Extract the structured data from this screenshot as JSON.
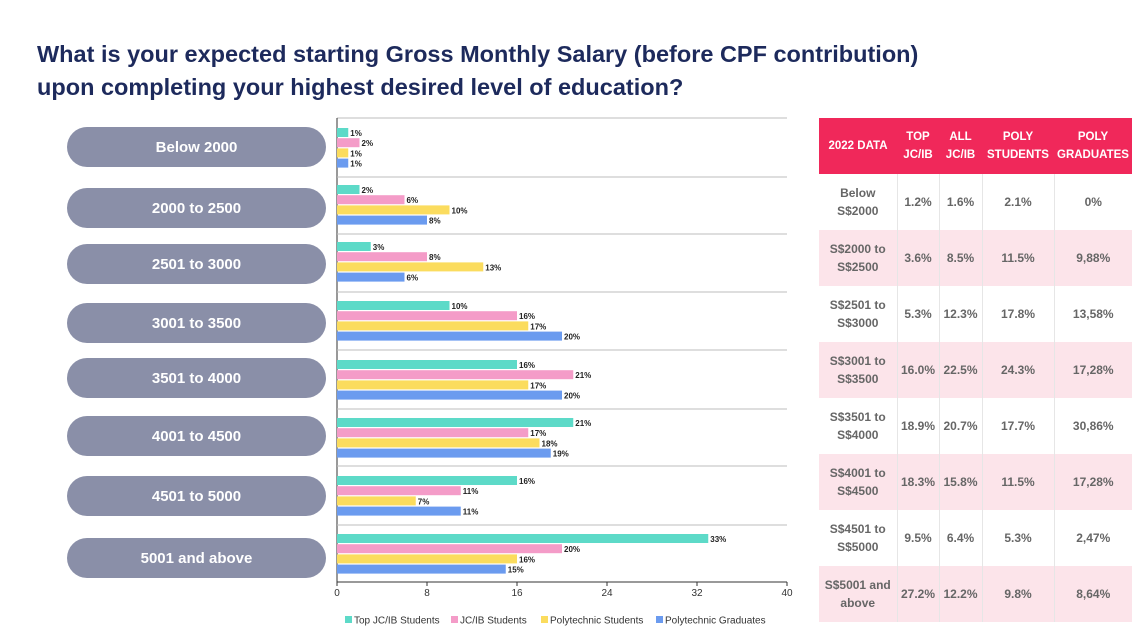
{
  "title_line1": "What is your expected starting Gross Monthly Salary (before CPF contribution)",
  "title_line2": "upon completing your highest desired level of education?",
  "chart_data": {
    "type": "bar",
    "orientation": "horizontal",
    "categories": [
      "Below 2000",
      "2000 to 2500",
      "2501 to 3000",
      "3001 to 3500",
      "3501 to 4000",
      "4001 to 4500",
      "4501 to 5000",
      "5001 and above"
    ],
    "series": [
      {
        "name": "Top JC/IB Students",
        "color": "#5ddac8",
        "values": [
          1,
          2,
          3,
          10,
          16,
          21,
          16,
          33
        ]
      },
      {
        "name": "JC/IB Students",
        "color": "#f49cc8",
        "values": [
          2,
          6,
          8,
          16,
          21,
          17,
          11,
          20
        ]
      },
      {
        "name": "Polytechnic Students",
        "color": "#fbdc5e",
        "values": [
          1,
          10,
          13,
          17,
          17,
          18,
          7,
          16
        ]
      },
      {
        "name": "Polytechnic Graduates",
        "color": "#6b9bef",
        "values": [
          1,
          8,
          6,
          20,
          20,
          19,
          11,
          15
        ]
      }
    ],
    "xlim": [
      0,
      40
    ],
    "xticks": [
      0,
      8,
      16,
      24,
      32,
      40
    ],
    "value_suffix": "%",
    "legend_position": "bottom"
  },
  "table": {
    "headers": [
      "2022 DATA",
      "TOP JC/IB",
      "ALL JC/IB",
      "POLY STUDENTS",
      "POLY GRADUATES"
    ],
    "rows": [
      [
        "Below S$2000",
        "1.2%",
        "1.6%",
        "2.1%",
        "0%"
      ],
      [
        "S$2000 to S$2500",
        "3.6%",
        "8.5%",
        "11.5%",
        "9,88%"
      ],
      [
        "S$2501 to S$3000",
        "5.3%",
        "12.3%",
        "17.8%",
        "13,58%"
      ],
      [
        "S$3001 to S$3500",
        "16.0%",
        "22.5%",
        "24.3%",
        "17,28%"
      ],
      [
        "S$3501 to S$4000",
        "18.9%",
        "20.7%",
        "17.7%",
        "30,86%"
      ],
      [
        "S$4001 to S$4500",
        "18.3%",
        "15.8%",
        "11.5%",
        "17,28%"
      ],
      [
        "S$4501 to S$5000",
        "9.5%",
        "6.4%",
        "5.3%",
        "2,47%"
      ],
      [
        "S$5001 and above",
        "27.2%",
        "12.2%",
        "9.8%",
        "8,64%"
      ]
    ]
  }
}
